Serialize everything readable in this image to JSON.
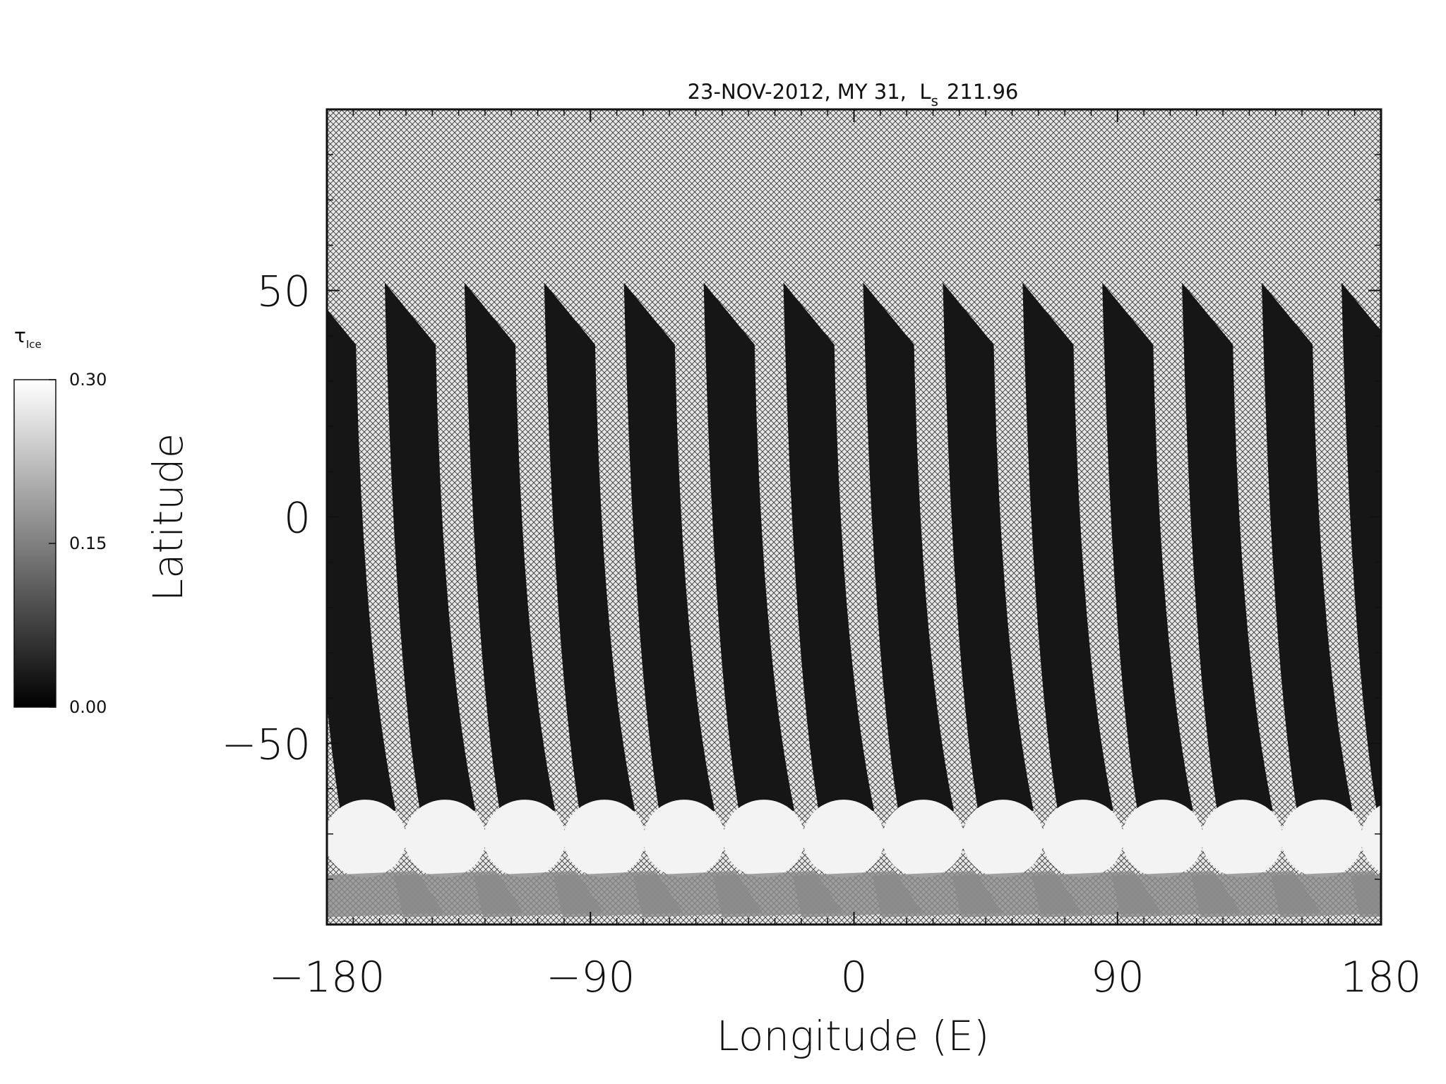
{
  "chart_data": {
    "type": "map",
    "title": {
      "text": "23-NOV-2012, MY 31,  L",
      "subscript": "s",
      "value_text": "211.96"
    },
    "xlabel": "Longitude (E)",
    "ylabel": "Latitude",
    "xlim": [
      -180,
      180
    ],
    "ylim": [
      -90,
      90
    ],
    "xticks": [
      {
        "value": -180,
        "label": "−180"
      },
      {
        "value": -90,
        "label": "−90"
      },
      0,
      90,
      180
    ],
    "yticks": [
      {
        "value": -50,
        "label": "−50"
      },
      0,
      50
    ],
    "colorbar": {
      "label": "τ",
      "label_subscript": "Ice",
      "range": [
        0,
        0.3
      ],
      "ticks": [
        {
          "value": 0,
          "label": "0.00"
        },
        {
          "value": 0.15,
          "label": "0.15"
        },
        {
          "value": 0.3,
          "label": "0.30"
        }
      ],
      "colors": [
        "#000000",
        "#ffffff"
      ]
    }
  }
}
